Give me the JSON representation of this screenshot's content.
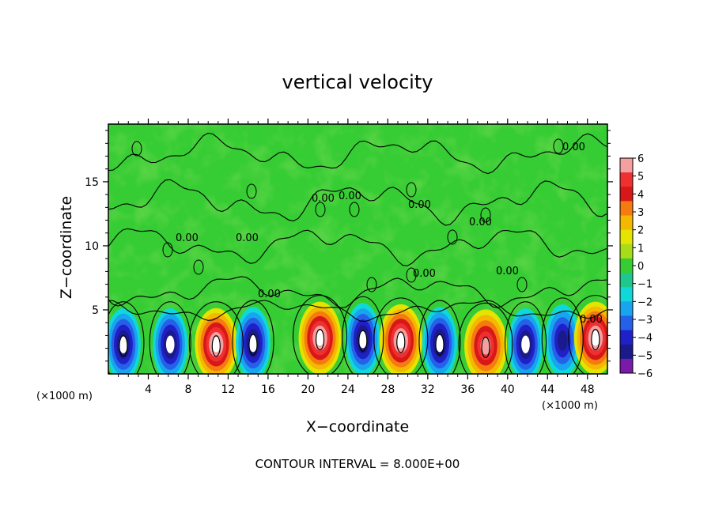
{
  "chart_data": {
    "type": "heatmap",
    "title": "vertical velocity",
    "xlabel": "X−coordinate",
    "ylabel": "Z−coordinate",
    "x_unit_label": "(×1000 m)",
    "y_unit_label": "(×1000 m)",
    "xlim": [
      0,
      50
    ],
    "ylim": [
      0,
      19.5
    ],
    "x_ticks": [
      4,
      8,
      12,
      16,
      20,
      24,
      28,
      32,
      36,
      40,
      44,
      48
    ],
    "y_ticks": [
      5,
      10,
      15
    ],
    "colorbar": {
      "range": [
        -6,
        6
      ],
      "ticks": [
        "6",
        "5",
        "4",
        "3",
        "2",
        "1",
        "0",
        "−1",
        "−2",
        "−3",
        "−4",
        "−5",
        "−6"
      ],
      "colors": [
        "#f4a0a0",
        "#f03030",
        "#d81818",
        "#f57a10",
        "#f5b800",
        "#e4e400",
        "#a8dc18",
        "#36cc34",
        "#1ec88c",
        "#10d8d8",
        "#18a4ee",
        "#2460e8",
        "#2020c8",
        "#1a1a8c",
        "#7a1aa8"
      ]
    },
    "background_value": 0,
    "cells": [
      {
        "x": 1.5,
        "z": 2.3,
        "w": -6
      },
      {
        "x": 6.2,
        "z": 2.3,
        "w": -4.5
      },
      {
        "x": 10.8,
        "z": 2.3,
        "w": 6
      },
      {
        "x": 14.5,
        "z": 2.4,
        "w": -6
      },
      {
        "x": 21.2,
        "z": 2.8,
        "w": 6
      },
      {
        "x": 25.5,
        "z": 2.7,
        "w": -5
      },
      {
        "x": 29.3,
        "z": 2.6,
        "w": 6
      },
      {
        "x": 33.2,
        "z": 2.4,
        "w": -5.5
      },
      {
        "x": 37.8,
        "z": 2.2,
        "w": 5
      },
      {
        "x": 41.8,
        "z": 2.3,
        "w": -4.5
      },
      {
        "x": 45.5,
        "z": 2.6,
        "w": -3.5
      },
      {
        "x": 48.8,
        "z": 2.8,
        "w": 6
      }
    ],
    "contour_labels": [
      "0.00",
      "0.00",
      "0.00",
      "0.00",
      "0.00",
      "0.00",
      "0.00",
      "0.00",
      "0.00",
      "0.00",
      "0.00"
    ],
    "contour_interval_text": "CONTOUR INTERVAL = 8.000E+00"
  }
}
